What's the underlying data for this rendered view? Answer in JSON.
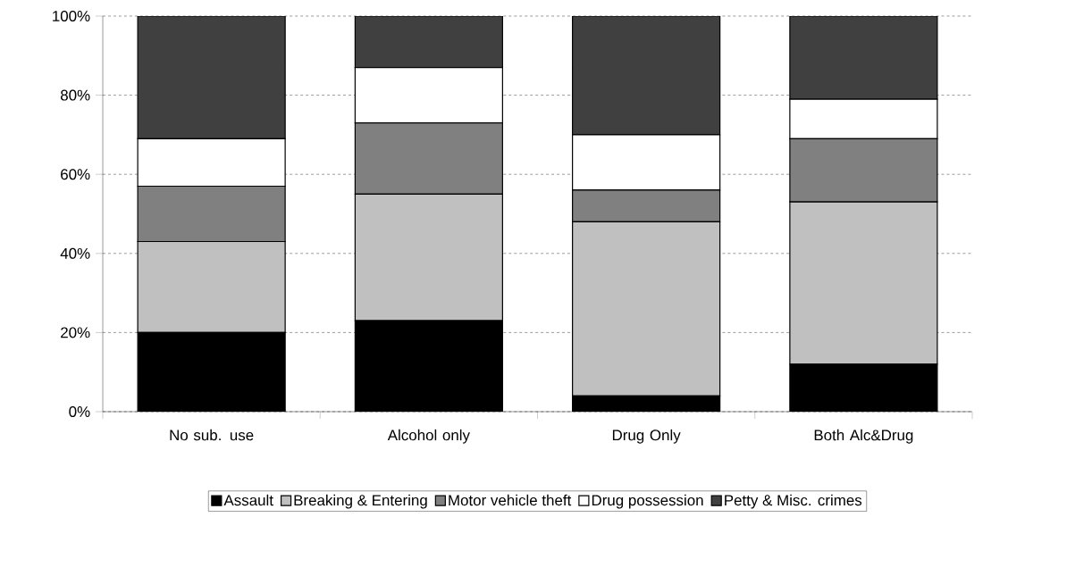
{
  "chart_data": {
    "type": "bar",
    "stacked": true,
    "categories": [
      "No sub. use",
      "Alcohol only",
      "Drug Only",
      "Both Alc&Drug"
    ],
    "series": [
      {
        "name": "Assault",
        "color": "#000000",
        "values": [
          20,
          23,
          4,
          12
        ]
      },
      {
        "name": "Breaking & Entering",
        "color": "#c0c0c0",
        "values": [
          23,
          32,
          44,
          41
        ]
      },
      {
        "name": "Motor vehicle theft",
        "color": "#808080",
        "values": [
          14,
          18,
          8,
          16
        ]
      },
      {
        "name": "Drug possession",
        "color": "#ffffff",
        "values": [
          12,
          14,
          14,
          10
        ]
      },
      {
        "name": "Petty & Misc. crimes",
        "color": "#404040",
        "values": [
          31,
          13,
          30,
          21
        ]
      }
    ],
    "ylim": [
      0,
      100
    ],
    "yticks": [
      {
        "value": 0,
        "label": "0%"
      },
      {
        "value": 20,
        "label": "20%"
      },
      {
        "value": 40,
        "label": "40%"
      },
      {
        "value": 60,
        "label": "60%"
      },
      {
        "value": 80,
        "label": "80%"
      },
      {
        "value": 100,
        "label": "100%"
      }
    ],
    "grid": "y",
    "legend": "bottom"
  }
}
